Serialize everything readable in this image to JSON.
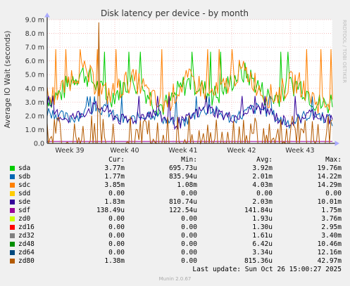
{
  "chart_data": {
    "type": "line",
    "title": "Disk latency per device - by month",
    "ylabel": "Average IO Wait (seconds)",
    "watermark": "RRDTOOL / TOBI OETIKER",
    "ylim": [
      0,
      9.0
    ],
    "yticks": [
      "0.0",
      "1.0 m",
      "2.0 m",
      "3.0 m",
      "4.0 m",
      "5.0 m",
      "6.0 m",
      "7.0 m",
      "8.0 m",
      "9.0 m"
    ],
    "xticks": [
      "Week 39",
      "Week 40",
      "Week 41",
      "Week 42",
      "Week 43"
    ],
    "columns": [
      "",
      "Cur:",
      "Min:",
      "Avg:",
      "Max:"
    ],
    "series": [
      {
        "name": "sda",
        "color": "#00cc00",
        "cur": "3.77m",
        "min": "695.73u",
        "avg": "3.92m",
        "max": "19.76m"
      },
      {
        "name": "sdb",
        "color": "#0066b3",
        "cur": "1.77m",
        "min": "835.94u",
        "avg": "2.01m",
        "max": "14.22m"
      },
      {
        "name": "sdc",
        "color": "#ff8000",
        "cur": "3.85m",
        "min": "1.08m",
        "avg": "4.03m",
        "max": "14.29m"
      },
      {
        "name": "sdd",
        "color": "#ffcc00",
        "cur": "0.00",
        "min": "0.00",
        "avg": "0.00",
        "max": "0.00"
      },
      {
        "name": "sde",
        "color": "#330099",
        "cur": "1.83m",
        "min": "810.74u",
        "avg": "2.03m",
        "max": "10.01m"
      },
      {
        "name": "sdf",
        "color": "#990099",
        "cur": "138.49u",
        "min": "122.54u",
        "avg": "141.84u",
        "max": "1.75m"
      },
      {
        "name": "zd0",
        "color": "#ccff00",
        "cur": "0.00",
        "min": "0.00",
        "avg": "1.93u",
        "max": "3.76m"
      },
      {
        "name": "zd16",
        "color": "#ff0000",
        "cur": "0.00",
        "min": "0.00",
        "avg": "1.30u",
        "max": "2.95m"
      },
      {
        "name": "zd32",
        "color": "#808080",
        "cur": "0.00",
        "min": "0.00",
        "avg": "1.61u",
        "max": "3.40m"
      },
      {
        "name": "zd48",
        "color": "#008f00",
        "cur": "0.00",
        "min": "0.00",
        "avg": "6.42u",
        "max": "10.46m"
      },
      {
        "name": "zd64",
        "color": "#00487d",
        "cur": "0.00",
        "min": "0.00",
        "avg": "3.34u",
        "max": "12.16m"
      },
      {
        "name": "zd80",
        "color": "#b35a00",
        "cur": "1.38m",
        "min": "0.00",
        "avg": "815.36u",
        "max": "42.97m"
      }
    ],
    "last_update": "Last update: Sun Oct 26 15:00:27 2025",
    "version": "Munin 2.0.67"
  }
}
